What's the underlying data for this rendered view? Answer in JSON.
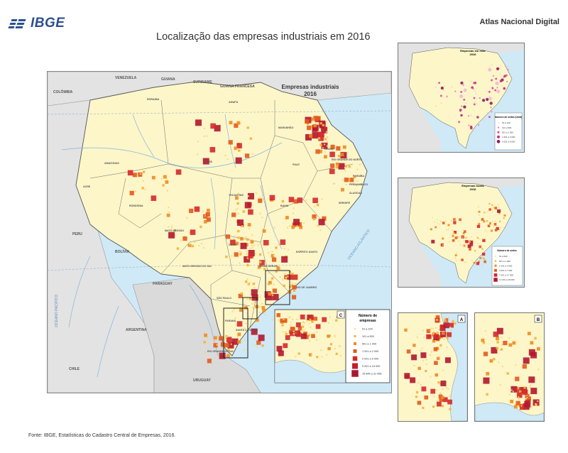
{
  "header": {
    "logo_text": "IBGE",
    "atlas_label": "Atlas Nacional Digital",
    "title": "Localização das empresas industriais em 2016"
  },
  "main_map": {
    "map_title_line1": "Empresas industriais",
    "map_title_line2": "2016",
    "countries": [
      "VENEZUELA",
      "GUIANA",
      "SURINAME",
      "GUIANA FRANCESA",
      "COLÔMBIA",
      "PERU",
      "BOLÍVIA",
      "PARAGUAY",
      "ARGENTINA",
      "URUGUAY",
      "CHILE"
    ],
    "states": [
      "AMAZONAS",
      "PARÁ",
      "MATO GROSSO",
      "GOIÁS",
      "BAHIA",
      "MINAS GERAIS",
      "SÃO PAULO",
      "PARANÁ",
      "RIO GRANDE DO SUL",
      "TOCANTINS",
      "MARANHÃO",
      "PIAUÍ",
      "CEARÁ",
      "RONDÔNIA",
      "ACRE",
      "RORAIMA",
      "AMAPÁ",
      "PERNAMBUCO",
      "ALAGOAS",
      "SERGIPE",
      "PARAÍBA",
      "RIO GRANDE DO NORTE",
      "ESPÍRITO SANTO",
      "RIO DE JANEIRO",
      "MATO GROSSO DO SUL",
      "SANTA CATARINA"
    ],
    "oceans": [
      "OCEANO ATLÂNTICO",
      "OCEANO PACÍFICO"
    ],
    "marker_colors": [
      "#f7d774",
      "#f3b335",
      "#ec8c1f",
      "#e35a1c",
      "#d32a2a",
      "#b3172e"
    ]
  },
  "legend": {
    "title_line1": "Número de",
    "title_line2": "empresas",
    "items": [
      "51 a 100",
      "101 a 500",
      "501 a 1 000",
      "1 001 a 2 000",
      "2 001 a 5 000",
      "5 001 a 15 000",
      "15 846 a 31 458"
    ],
    "colors": [
      "#f7d774",
      "#f3b335",
      "#ec8c1f",
      "#e35a1c",
      "#d32a2a",
      "#c11f2c",
      "#a8172e"
    ]
  },
  "insets": {
    "inset1_title_line1": "Empresas em rede",
    "inset1_title_line2": "2016",
    "inset1_legend_title": "Número de sedes (Unid)",
    "inset1_legend_items": [
      "51 a 100",
      "101 a 500",
      "501 a 1 000",
      "1 001 a 3 000",
      "3 001 a 8 000"
    ],
    "inset2_title_line1": "Empresas locais",
    "inset2_title_line2": "2016",
    "inset2_legend_title": "Número de sedes",
    "inset2_legend_items": [
      "51 a 500",
      "501 a 1 000",
      "1 001 a 3 000",
      "3 001 a 7 000",
      "7 001 a 17 000",
      "17 001 a 48 000"
    ],
    "zoom_a_label": "A",
    "zoom_b_label": "B",
    "zoom_c_label": "C"
  },
  "footer": {
    "source": "Fonte: IBGE, Estatísticas do Cadastro Central de Empresas, 2016."
  }
}
